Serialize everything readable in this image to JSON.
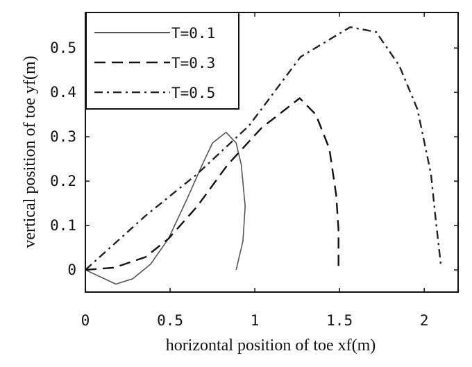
{
  "chart_data": {
    "type": "line",
    "title": "",
    "xlabel": "horizontal position of toe xf(m)",
    "ylabel": "vertical position of toe yf(m)",
    "xlim": [
      0,
      2.2
    ],
    "ylim": [
      -0.05,
      0.58
    ],
    "xticks": [
      0,
      0.5,
      1,
      1.5,
      2
    ],
    "xtick_labels": [
      "0",
      "0.5",
      "1",
      "1.5",
      "2"
    ],
    "yticks": [
      0,
      0.1,
      0.2,
      0.3,
      0.4,
      0.5
    ],
    "ytick_labels": [
      "0",
      "0.1",
      "0.2",
      "0.3",
      "0.4",
      "0.5"
    ],
    "grid": false,
    "legend_position": "top-left",
    "series": [
      {
        "name": "T=0.1",
        "style": "solid",
        "color": "#555555",
        "x": [
          0,
          0.18,
          0.28,
          0.385,
          0.49,
          0.6,
          0.69,
          0.75,
          0.83,
          0.89,
          0.92,
          0.943,
          0.93,
          0.89
        ],
        "y": [
          0,
          -0.032,
          -0.02,
          0.013,
          0.07,
          0.16,
          0.237,
          0.286,
          0.31,
          0.286,
          0.237,
          0.143,
          0.065,
          0
        ]
      },
      {
        "name": "T=0.3",
        "style": "dashed",
        "color": "#111111",
        "x": [
          0,
          0.17,
          0.355,
          0.49,
          0.66,
          0.84,
          1.04,
          1.265,
          1.36,
          1.44,
          1.48,
          1.494,
          1.494
        ],
        "y": [
          0,
          0.005,
          0.029,
          0.07,
          0.143,
          0.237,
          0.32,
          0.387,
          0.35,
          0.273,
          0.169,
          0.09,
          0
        ]
      },
      {
        "name": "T=0.5",
        "style": "dashdot",
        "color": "#222222",
        "x": [
          0,
          0.355,
          0.66,
          0.966,
          1.27,
          1.563,
          1.716,
          1.853,
          1.96,
          2.04,
          2.067,
          2.1
        ],
        "y": [
          0,
          0.122,
          0.216,
          0.325,
          0.48,
          0.547,
          0.536,
          0.46,
          0.362,
          0.216,
          0.117,
          0.005
        ]
      }
    ]
  }
}
